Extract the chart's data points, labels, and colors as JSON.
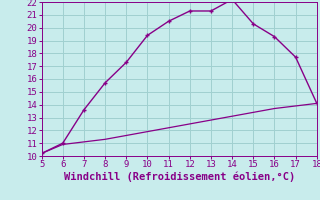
{
  "xlabel": "Windchill (Refroidissement éolien,°C)",
  "xlim": [
    5,
    18
  ],
  "ylim": [
    10,
    22
  ],
  "xticks": [
    5,
    6,
    7,
    8,
    9,
    10,
    11,
    12,
    13,
    14,
    15,
    16,
    17,
    18
  ],
  "yticks": [
    10,
    11,
    12,
    13,
    14,
    15,
    16,
    17,
    18,
    19,
    20,
    21,
    22
  ],
  "line1_x": [
    5,
    6,
    7,
    8,
    9,
    10,
    11,
    12,
    13,
    14,
    15,
    16,
    17,
    18
  ],
  "line1_y": [
    10.2,
    11.0,
    13.6,
    15.7,
    17.3,
    19.4,
    20.5,
    21.3,
    21.3,
    22.2,
    20.3,
    19.3,
    17.7,
    14.1
  ],
  "line2_x": [
    5,
    6,
    7,
    8,
    9,
    10,
    11,
    12,
    13,
    14,
    15,
    16,
    17,
    18
  ],
  "line2_y": [
    10.2,
    10.9,
    11.1,
    11.3,
    11.6,
    11.9,
    12.2,
    12.5,
    12.8,
    13.1,
    13.4,
    13.7,
    13.9,
    14.1
  ],
  "line_color": "#880088",
  "bg_color": "#c8ecec",
  "grid_color": "#a0d0d0",
  "tick_color": "#880088",
  "label_color": "#880088",
  "fontsize_label": 7.5,
  "fontsize_tick": 6.5
}
